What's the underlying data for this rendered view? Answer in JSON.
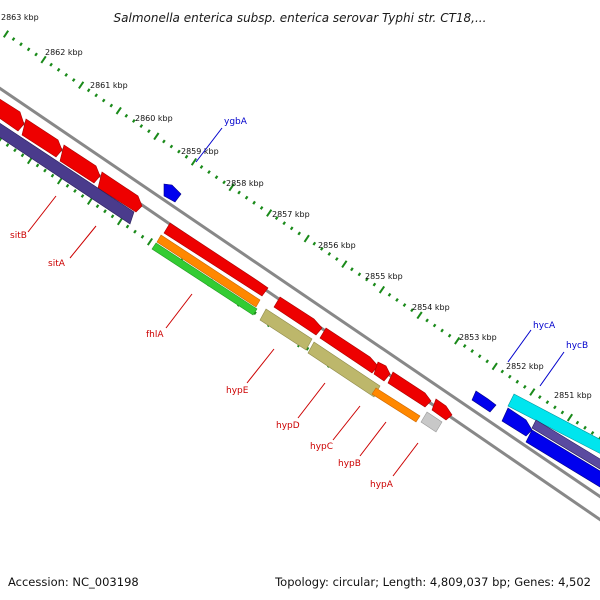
{
  "title": "Salmonella enterica subsp. enterica serovar Typhi str. CT18,...",
  "footer": {
    "accession": "Accession: NC_003198",
    "summary": "Topology: circular; Length: 4,809,037 bp; Genes: 4,502"
  },
  "colors": {
    "backbone": "#888888",
    "tick": "#1a8a1a",
    "label_red": "#cc0000",
    "label_blue": "#0000cc"
  },
  "kbp_labels": [
    "2863 kbp",
    "2862 kbp",
    "2861 kbp",
    "2860 kbp",
    "2859 kbp",
    "2858 kbp",
    "2857 kbp",
    "2856 kbp",
    "2855 kbp",
    "2854 kbp",
    "2853 kbp",
    "2852 kbp",
    "2851 kbp"
  ],
  "gene_labels": {
    "ygbA": "ygbA",
    "sitB": "sitB",
    "sitA": "sitA",
    "fhlA": "fhlA",
    "hypE": "hypE",
    "hypD": "hypD",
    "hypC": "hypC",
    "hypB": "hypB",
    "hypA": "hypA",
    "hycA": "hycA",
    "hycB": "hycB"
  }
}
